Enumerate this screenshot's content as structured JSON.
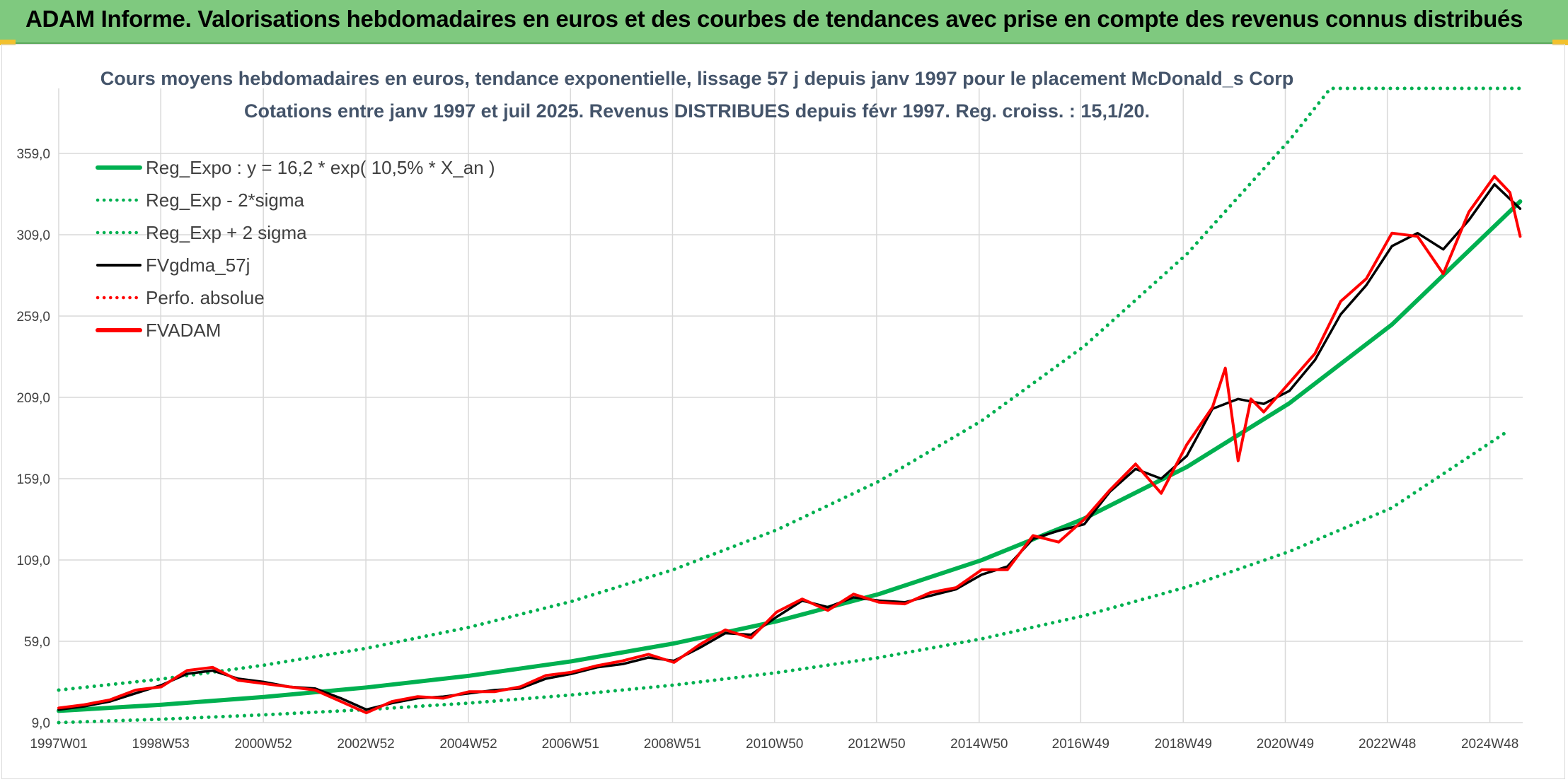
{
  "banner": {
    "title": "ADAM Informe. Valorisations hebdomadaires en euros et des courbes de tendances avec prise en compte des revenus connus distribués"
  },
  "chart_data": {
    "type": "line",
    "title": "Cours moyens hebdomadaires en euros, tendance exponentielle, lissage 57 j depuis janv 1997 pour le placement McDonald_s Corp",
    "subtitle": "Cotations entre janv 1997 et juil 2025. Revenus DISTRIBUES depuis févr 1997. Reg. croiss. : 15,1/20.",
    "xlabel": "",
    "ylabel": "",
    "x_range": [
      1997.0,
      2025.55
    ],
    "ylim": [
      9,
      399
    ],
    "y_ticks": [
      "9,0",
      "59,0",
      "109,0",
      "159,0",
      "209,0",
      "259,0",
      "309,0",
      "359,0"
    ],
    "x_ticks": [
      {
        "label": "1997W01",
        "x": 1997.0
      },
      {
        "label": "1998W53",
        "x": 1998.99
      },
      {
        "label": "2000W52",
        "x": 2000.99
      },
      {
        "label": "2002W52",
        "x": 2002.99
      },
      {
        "label": "2004W52",
        "x": 2004.99
      },
      {
        "label": "2006W51",
        "x": 2006.98
      },
      {
        "label": "2008W51",
        "x": 2008.97
      },
      {
        "label": "2010W50",
        "x": 2010.96
      },
      {
        "label": "2012W50",
        "x": 2012.95
      },
      {
        "label": "2014W50",
        "x": 2014.95
      },
      {
        "label": "2016W49",
        "x": 2016.93
      },
      {
        "label": "2018W49",
        "x": 2018.93
      },
      {
        "label": "2020W49",
        "x": 2020.92
      },
      {
        "label": "2022W48",
        "x": 2022.91
      },
      {
        "label": "2024W48",
        "x": 2024.91
      }
    ],
    "grid": true,
    "legend_position": "top-left",
    "colors": {
      "green": "#00b050",
      "black": "#000000",
      "red": "#ff0000",
      "grid": "#d9d9d9"
    },
    "series": [
      {
        "name": "Reg_Expo : y = 16,2 * exp( 10,5% *  X_an )",
        "style": "solid",
        "color": "#00b050",
        "x": [
          1997,
          1999,
          2001,
          2003,
          2005,
          2007,
          2009,
          2011,
          2013,
          2015,
          2017,
          2019,
          2021,
          2023,
          2025.5
        ],
        "y": [
          16.2,
          20.0,
          24.8,
          30.6,
          37.8,
          46.7,
          57.7,
          71.3,
          88.1,
          108.9,
          134.5,
          166.2,
          205.4,
          253.8,
          329.5
        ]
      },
      {
        "name": "Reg_Exp - 2*sigma",
        "style": "dotted",
        "color": "#00b050",
        "x": [
          1997,
          1999,
          2001,
          2003,
          2005,
          2007,
          2009,
          2011,
          2013,
          2015,
          2017,
          2019,
          2021,
          2023,
          2025.2
        ],
        "y": [
          9.0,
          11.1,
          13.8,
          17.0,
          21.0,
          26.0,
          32.1,
          39.7,
          49.0,
          60.5,
          74.8,
          92.4,
          114.2,
          141.1,
          187.0
        ]
      },
      {
        "name": "Reg_Exp + 2 sigma",
        "style": "dotted",
        "color": "#00b050",
        "x": [
          1997,
          1999,
          2001,
          2003,
          2005,
          2007,
          2009,
          2011,
          2013,
          2015,
          2017,
          2019,
          2021,
          2021.8,
          2022.5,
          2025.5
        ],
        "y": [
          29.0,
          35.8,
          44.3,
          54.7,
          67.6,
          83.5,
          103.2,
          127.5,
          157.5,
          194.6,
          240.5,
          297.1,
          367.1,
          399,
          399,
          399
        ]
      },
      {
        "name": "FVgdma_57j",
        "style": "solid",
        "color": "#000000",
        "x": [
          1997,
          1997.5,
          1998,
          1998.5,
          1999,
          1999.5,
          2000,
          2000.5,
          2001,
          2001.5,
          2002,
          2002.5,
          2003,
          2003.5,
          2004,
          2004.5,
          2005,
          2005.5,
          2006,
          2006.5,
          2007,
          2007.5,
          2008,
          2008.5,
          2009,
          2009.5,
          2010,
          2010.5,
          2011,
          2011.5,
          2012,
          2012.5,
          2013,
          2013.5,
          2014,
          2014.5,
          2015,
          2015.5,
          2016,
          2016.5,
          2017,
          2017.5,
          2018,
          2018.5,
          2019,
          2019.5,
          2020,
          2020.5,
          2021,
          2021.5,
          2022,
          2022.5,
          2023,
          2023.5,
          2024,
          2024.5,
          2025,
          2025.5
        ],
        "y": [
          17,
          19,
          22,
          27,
          32,
          39,
          41,
          36,
          34,
          31,
          30,
          24,
          17,
          21,
          24,
          25,
          27,
          29,
          30,
          36,
          39,
          43,
          45,
          49,
          47,
          55,
          64,
          63,
          74,
          84,
          80,
          86,
          84,
          83,
          87,
          91,
          100,
          105,
          122,
          127,
          131,
          151,
          165,
          159,
          173,
          202,
          208,
          205,
          213,
          232,
          260,
          278,
          302,
          310,
          300,
          318,
          340,
          325
        ]
      },
      {
        "name": "Perfo. absolue",
        "style": "dotted",
        "color": "#ff0000",
        "x": [],
        "y": []
      },
      {
        "name": "FVADAM",
        "style": "solid",
        "color": "#ff0000",
        "x": [
          1997,
          1997.5,
          1998,
          1998.5,
          1999,
          1999.5,
          2000,
          2000.5,
          2001,
          2001.5,
          2002,
          2002.5,
          2003,
          2003.5,
          2004,
          2004.5,
          2005,
          2005.5,
          2006,
          2006.5,
          2007,
          2007.5,
          2008,
          2008.5,
          2009,
          2009.5,
          2010,
          2010.5,
          2011,
          2011.5,
          2012,
          2012.5,
          2013,
          2013.5,
          2014,
          2014.5,
          2015,
          2015.5,
          2016,
          2016.5,
          2017,
          2017.5,
          2018,
          2018.5,
          2019,
          2019.5,
          2019.75,
          2020,
          2020.25,
          2020.5,
          2021,
          2021.5,
          2022,
          2022.5,
          2023,
          2023.5,
          2024,
          2024.5,
          2025,
          2025.3,
          2025.5
        ],
        "y": [
          18,
          20,
          23,
          29,
          31,
          41,
          43,
          35,
          33,
          31,
          29,
          22,
          15,
          22,
          25,
          24,
          28,
          28,
          31,
          38,
          40,
          44,
          47,
          51,
          46,
          57,
          66,
          61,
          77,
          85,
          78,
          88,
          83,
          82,
          89,
          92,
          103,
          103,
          124,
          120,
          134,
          152,
          168,
          150,
          180,
          203,
          227,
          170,
          208,
          200,
          218,
          236,
          268,
          282,
          310,
          308,
          285,
          323,
          345,
          335,
          308
        ]
      }
    ]
  }
}
